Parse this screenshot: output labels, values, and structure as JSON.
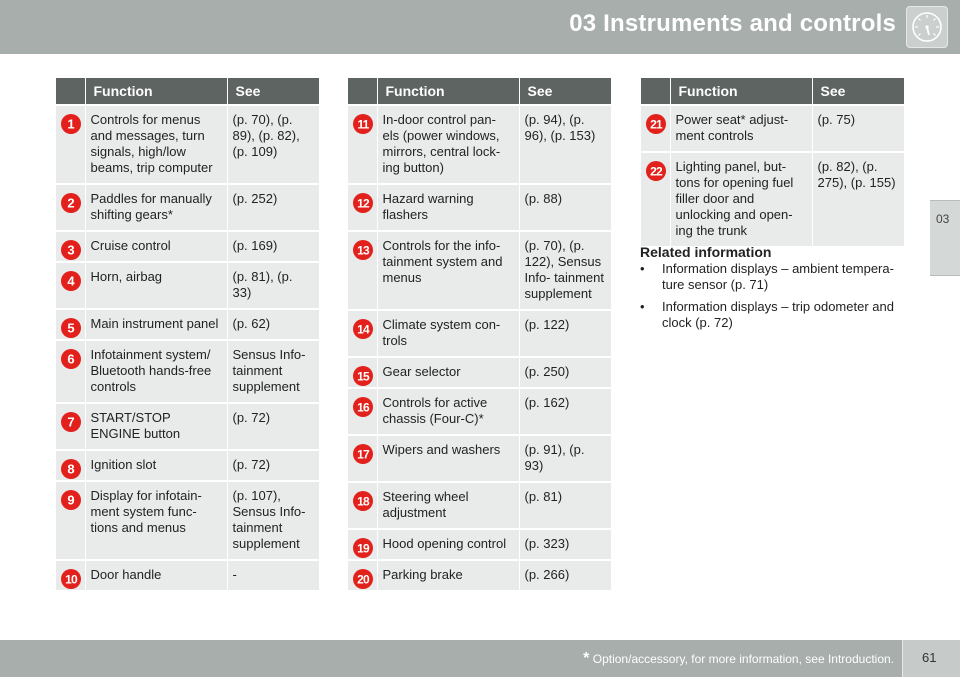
{
  "header": {
    "title": "03 Instruments and controls",
    "icon": "gauge-icon"
  },
  "side_tab": {
    "label": "03"
  },
  "table_headers": {
    "function": "Function",
    "see": "See"
  },
  "tables": [
    {
      "rows": [
        {
          "num": "1",
          "function": "Controls for menus and messages, turn signals, high/low beams, trip computer",
          "see": "(p. 70), (p. 89), (p. 82), (p. 109)"
        },
        {
          "num": "2",
          "function": "Paddles for manually shifting gears*",
          "see": "(p. 252)"
        },
        {
          "num": "3",
          "function": "Cruise control",
          "see": "(p. 169)"
        },
        {
          "num": "4",
          "function": "Horn, airbag",
          "see": "(p. 81), (p. 33)"
        },
        {
          "num": "5",
          "function": "Main instrument panel",
          "see": "(p. 62)"
        },
        {
          "num": "6",
          "function": "Infotainment system/ Bluetooth hands-free controls",
          "see": "Sensus Info- tainment supplement"
        },
        {
          "num": "7",
          "function": "START/STOP ENGINE button",
          "see": "(p. 72)"
        },
        {
          "num": "8",
          "function": "Ignition slot",
          "see": "(p. 72)"
        },
        {
          "num": "9",
          "function": "Display for infotain- ment system func- tions and menus",
          "see": "(p. 107), Sensus Info- tainment supplement"
        },
        {
          "num": "10",
          "function": "Door handle",
          "see": "-"
        }
      ]
    },
    {
      "rows": [
        {
          "num": "11",
          "function": "In-door control pan- els (power windows, mirrors, central lock- ing button)",
          "see": "(p. 94), (p. 96), (p. 153)"
        },
        {
          "num": "12",
          "function": "Hazard warning flashers",
          "see": "(p. 88)"
        },
        {
          "num": "13",
          "function": "Controls for the info- tainment system and menus",
          "see": "(p. 70), (p. 122), Sensus Info- tainment supplement"
        },
        {
          "num": "14",
          "function": "Climate system con- trols",
          "see": "(p. 122)"
        },
        {
          "num": "15",
          "function": "Gear selector",
          "see": "(p. 250)"
        },
        {
          "num": "16",
          "function": "Controls for active chassis (Four-C)*",
          "see": "(p. 162)"
        },
        {
          "num": "17",
          "function": "Wipers and washers",
          "see": "(p. 91), (p. 93)"
        },
        {
          "num": "18",
          "function": "Steering wheel adjustment",
          "see": "(p. 81)"
        },
        {
          "num": "19",
          "function": "Hood opening control",
          "see": "(p. 323)"
        },
        {
          "num": "20",
          "function": "Parking brake",
          "see": "(p. 266)"
        }
      ]
    },
    {
      "rows": [
        {
          "num": "21",
          "function": "Power seat* adjust- ment controls",
          "see": "(p. 75)"
        },
        {
          "num": "22",
          "function": "Lighting panel, but- tons for opening fuel filler door and unlocking and open- ing the trunk",
          "see": "(p. 82), (p. 275), (p. 155)"
        }
      ]
    }
  ],
  "related": {
    "title": "Related information",
    "items": [
      "Information displays – ambient tempera- ture sensor (p. 71)",
      "Information displays – trip odometer and clock (p. 72)"
    ]
  },
  "footer": {
    "asterisk": "*",
    "note": "Option/accessory, for more information, see Introduction.",
    "page": "61"
  },
  "colors": {
    "header": "#a7aeac",
    "table_head": "#5e6462",
    "row_bg": "#e9ebea",
    "badge": "#e2211c"
  }
}
